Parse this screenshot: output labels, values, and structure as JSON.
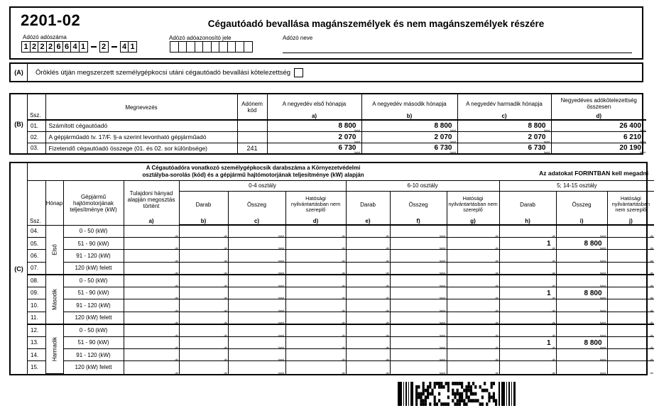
{
  "header": {
    "form_code": "2201-02",
    "title": "Cégautóadó bevallása magánszemélyek és nem magánszemélyek részére",
    "tax_number": {
      "label": "Adózó adószáma",
      "groups": [
        "12226641",
        "2",
        "41"
      ]
    },
    "tax_id": {
      "label": "Adózó adóazonosító jele",
      "box_count": 10
    },
    "name": {
      "label": "Adózó neve",
      "value": ""
    }
  },
  "section_a": {
    "label": "(A)",
    "text": "Öröklés útján megszerzett személygépkocsi utáni cégautóadó bevallási kötelezettség",
    "checkbox_checked": false
  },
  "section_b": {
    "label": "(B)",
    "col_ssz": "Ssz.",
    "col_megnevezes": "Megnevezés",
    "col_adonem": "Adónem kód",
    "unit": "forint",
    "cols": [
      {
        "title": "A negyedév első hónapja",
        "letter": "a)"
      },
      {
        "title": "A negyedév második hónapja",
        "letter": "b)"
      },
      {
        "title": "A negyedév harmadik hónapja",
        "letter": "c)"
      },
      {
        "title": "Negyedéves adókötelezettség összesen",
        "letter": "d)"
      }
    ],
    "rows": [
      {
        "ssz": "01.",
        "name": "Számított cégautóadó",
        "code": "",
        "values": [
          "8 800",
          "8 800",
          "8 800",
          "26 400"
        ]
      },
      {
        "ssz": "02.",
        "name": "A gépjárműadó tv. 17/F. §-a szerint levonható gépjárműadó",
        "code": "",
        "values": [
          "2 070",
          "2 070",
          "2 070",
          "6 210"
        ]
      },
      {
        "ssz": "03.",
        "name": "Fizetendő cégautóadó összege (01. és 02. sor különbsége)",
        "code": "241",
        "values": [
          "6 730",
          "6 730",
          "6 730",
          "20 190"
        ]
      }
    ]
  },
  "section_c": {
    "label": "(C)",
    "title_line1": "A Cégautóadóra vonatkozó személygépkocsik darabszáma a Környezetvédelmi",
    "title_line2": "osztályba-sorolás (kód) és a gépjármű hajtómotorjának teljesítménye (kW) alapján",
    "note": "Az adatokat FORINTBAN kell megadni",
    "col_ssz": "Ssz.",
    "col_honap": "Hónap",
    "col_kw": "Gépjármű hajtómotorjának teljesítménye (kW)",
    "col_a": {
      "title": "Tulajdoni hányad alapján megosztás történt",
      "letter": "a)",
      "unit": "db"
    },
    "groups": [
      {
        "title": "0-4 osztály",
        "cols": [
          {
            "title": "Darab",
            "letter": "b)",
            "unit": "db"
          },
          {
            "title": "Összeg",
            "letter": "c)",
            "unit": "forint"
          },
          {
            "title": "Hatósági nyilvántartásban nem szereplő",
            "letter": "d)",
            "unit": "db"
          }
        ]
      },
      {
        "title": "6-10 osztály",
        "cols": [
          {
            "title": "Darab",
            "letter": "e)",
            "unit": "db"
          },
          {
            "title": "Összeg",
            "letter": "f)",
            "unit": "forint"
          },
          {
            "title": "Hatósági nyilvántartásban nem szereplő",
            "letter": "g)",
            "unit": "db"
          }
        ]
      },
      {
        "title": "5; 14-15 osztály",
        "cols": [
          {
            "title": "Darab",
            "letter": "h)",
            "unit": "db"
          },
          {
            "title": "Összeg",
            "letter": "i)",
            "unit": "forint"
          },
          {
            "title": "Hatósági nyilvántartásban nem szereplő",
            "letter": "j)",
            "unit": "db"
          }
        ]
      }
    ],
    "months": [
      {
        "name": "Első",
        "rows": [
          "04.",
          "05.",
          "06.",
          "07."
        ]
      },
      {
        "name": "Második",
        "rows": [
          "08.",
          "09.",
          "10.",
          "11."
        ]
      },
      {
        "name": "Harmadik",
        "rows": [
          "12.",
          "13.",
          "14.",
          "15."
        ]
      }
    ],
    "power_ranges": [
      "0 - 50 (kW)",
      "51 - 90 (kW)",
      "91 - 120 (kW)",
      "120 (kW) felett"
    ],
    "values": [
      {
        "row": "05.",
        "col": "h",
        "value": "1"
      },
      {
        "row": "05.",
        "col": "i",
        "value": "8 800"
      },
      {
        "row": "09.",
        "col": "h",
        "value": "1"
      },
      {
        "row": "09.",
        "col": "i",
        "value": "8 800"
      },
      {
        "row": "13.",
        "col": "h",
        "value": "1"
      },
      {
        "row": "13.",
        "col": "i",
        "value": "8 800"
      }
    ]
  },
  "barcode": {
    "type": "pdf417-2d-barcode"
  },
  "colors": {
    "ink": "#000000",
    "paper": "#ffffff"
  }
}
